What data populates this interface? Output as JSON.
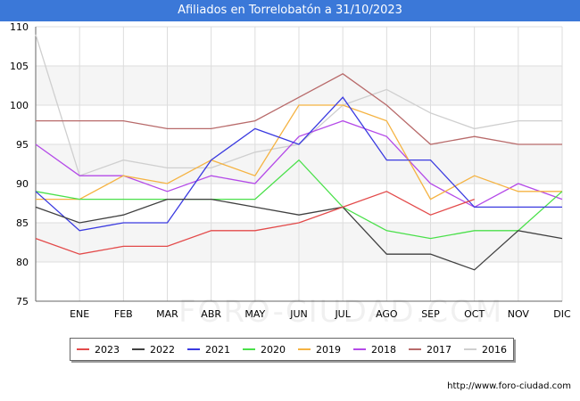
{
  "chart_data": {
    "type": "line",
    "title": "Afiliados en Torrelobatón a 31/10/2023",
    "categories": [
      "",
      "ENE",
      "FEB",
      "MAR",
      "ABR",
      "MAY",
      "JUN",
      "JUL",
      "AGO",
      "SEP",
      "OCT",
      "NOV",
      "DIC"
    ],
    "ylim": [
      75,
      110
    ],
    "yticks": [
      75,
      80,
      85,
      90,
      95,
      100,
      105,
      110
    ],
    "grid": true,
    "legend_position": "bottom",
    "series": [
      {
        "name": "2023",
        "color": "#e34a4a",
        "values": [
          83,
          81,
          82,
          82,
          84,
          84,
          85,
          87,
          89,
          86,
          88,
          null,
          null
        ]
      },
      {
        "name": "2022",
        "color": "#404040",
        "values": [
          87,
          85,
          86,
          88,
          88,
          87,
          86,
          87,
          81,
          81,
          79,
          84,
          83
        ]
      },
      {
        "name": "2021",
        "color": "#3a3ae0",
        "values": [
          89,
          84,
          85,
          85,
          93,
          97,
          95,
          101,
          93,
          93,
          87,
          87,
          87
        ]
      },
      {
        "name": "2020",
        "color": "#4ae04a",
        "values": [
          89,
          88,
          88,
          88,
          88,
          88,
          93,
          87,
          84,
          83,
          84,
          84,
          89
        ]
      },
      {
        "name": "2019",
        "color": "#f5b342",
        "values": [
          88,
          88,
          91,
          90,
          93,
          91,
          100,
          100,
          98,
          88,
          91,
          89,
          89
        ]
      },
      {
        "name": "2018",
        "color": "#b44ae8",
        "values": [
          95,
          91,
          91,
          89,
          91,
          90,
          96,
          98,
          96,
          90,
          87,
          90,
          88
        ]
      },
      {
        "name": "2017",
        "color": "#b86a6a",
        "values": [
          98,
          98,
          98,
          97,
          97,
          98,
          101,
          104,
          100,
          95,
          96,
          95,
          95
        ]
      },
      {
        "name": "2016",
        "color": "#cfcfcf",
        "values": [
          109,
          91,
          93,
          92,
          92,
          94,
          95,
          100,
          102,
          99,
          97,
          98,
          98
        ]
      }
    ]
  },
  "watermark": "FORO-CIUDAD.COM",
  "source": "http://www.foro-ciudad.com"
}
